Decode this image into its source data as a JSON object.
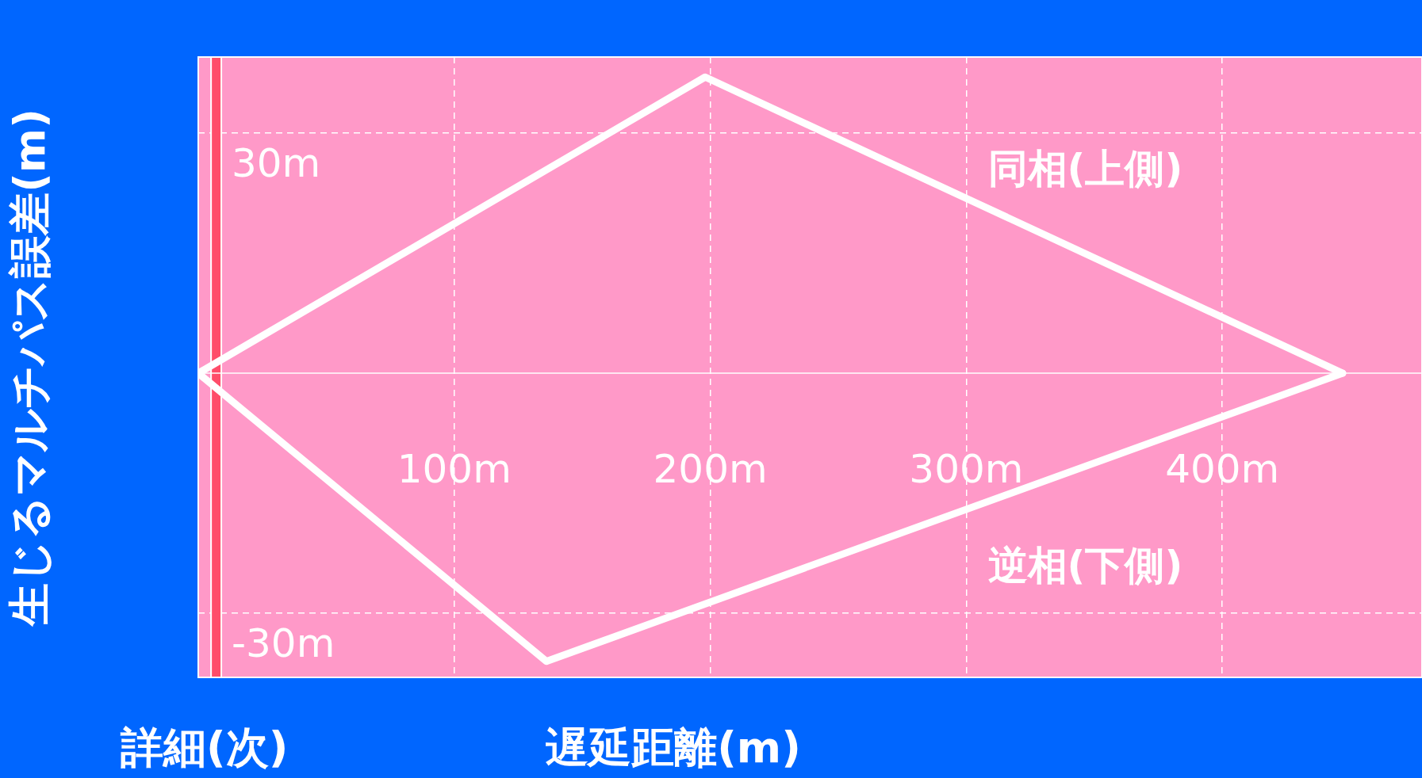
{
  "chart_data": {
    "type": "line",
    "xlabel": "遅延距離(m)",
    "ylabel": "生じるマルチパス誤差(m)",
    "annotations": [
      "詳細(次)"
    ],
    "series": [
      {
        "name": "同相(上側)",
        "color": "#ffffff",
        "x": [
          0,
          198,
          447
        ],
        "values": [
          0,
          37,
          0
        ]
      },
      {
        "name": "逆相(下側)",
        "color": "#ffffff",
        "x": [
          0,
          136,
          447
        ],
        "values": [
          0,
          -36,
          0
        ]
      }
    ],
    "xlim": [
      0,
      478
    ],
    "ylim": [
      -38,
      39.5
    ],
    "xticks": [
      {
        "value": 100,
        "label": "100m"
      },
      {
        "value": 200,
        "label": "200m"
      },
      {
        "value": 300,
        "label": "300m"
      },
      {
        "value": 400,
        "label": "400m"
      }
    ],
    "yticks": [
      {
        "value": -30,
        "label": "-30m"
      },
      {
        "value": 30,
        "label": "30m"
      }
    ],
    "bands": [
      {
        "axis": "x",
        "from": 5,
        "to": 9,
        "color": "#ff4d6a"
      }
    ],
    "grid": true,
    "legend": false,
    "marker": "none",
    "line_style": "solid"
  }
}
